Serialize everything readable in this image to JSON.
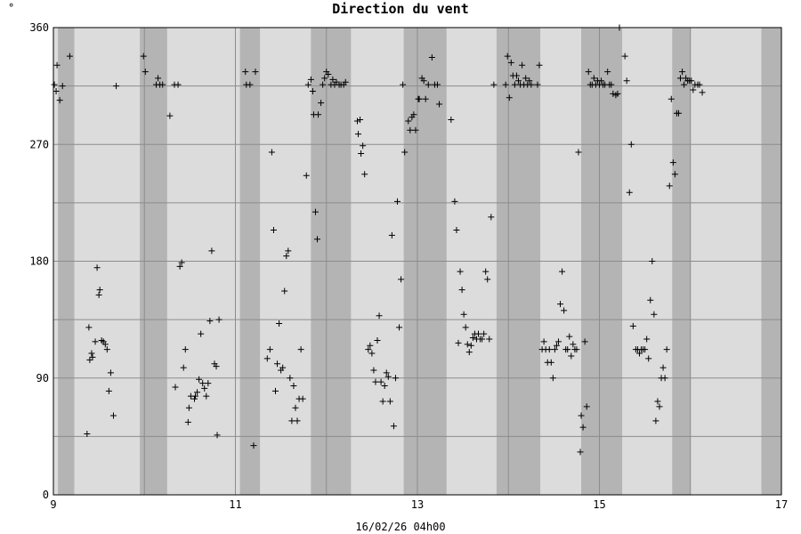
{
  "chart_data": {
    "type": "scatter",
    "title": "Direction du vent",
    "unit": "°",
    "xlabel": "16/02/26 04h00",
    "ylabel": "",
    "xlim": [
      9,
      17
    ],
    "ylim": [
      0,
      360
    ],
    "x_ticks": [
      9,
      11,
      13,
      15,
      17
    ],
    "y_ticks": [
      0,
      90,
      180,
      270,
      360
    ],
    "minor_gridlines_x": [
      10,
      12,
      14,
      16
    ],
    "minor_gridlines_y": [
      45,
      135,
      225,
      315
    ],
    "night_bands": [
      [
        9.05,
        9.23
      ],
      [
        9.95,
        10.25
      ],
      [
        11.05,
        11.27
      ],
      [
        11.83,
        12.27
      ],
      [
        12.85,
        13.32
      ],
      [
        13.87,
        14.35
      ],
      [
        14.8,
        15.25
      ],
      [
        15.8,
        16.0
      ],
      [
        16.78,
        17.0
      ]
    ],
    "background_color": "#dcdcdc",
    "night_color": "#b4b4b4",
    "points": [
      [
        9.01,
        316
      ],
      [
        9.03,
        311
      ],
      [
        9.04,
        331
      ],
      [
        9.07,
        304
      ],
      [
        9.1,
        315
      ],
      [
        9.18,
        338
      ],
      [
        9.37,
        47
      ],
      [
        9.39,
        129
      ],
      [
        9.4,
        104
      ],
      [
        9.42,
        109
      ],
      [
        9.43,
        106
      ],
      [
        9.46,
        118
      ],
      [
        9.48,
        175
      ],
      [
        9.5,
        154
      ],
      [
        9.51,
        158
      ],
      [
        9.53,
        119
      ],
      [
        9.55,
        118
      ],
      [
        9.57,
        116
      ],
      [
        9.59,
        112
      ],
      [
        9.61,
        80
      ],
      [
        9.63,
        94
      ],
      [
        9.66,
        61
      ],
      [
        9.69,
        315
      ],
      [
        9.99,
        338
      ],
      [
        10.01,
        326
      ],
      [
        10.13,
        316
      ],
      [
        10.15,
        321
      ],
      [
        10.17,
        316
      ],
      [
        10.2,
        316
      ],
      [
        10.28,
        292
      ],
      [
        10.33,
        316
      ],
      [
        10.34,
        83
      ],
      [
        10.37,
        316
      ],
      [
        10.39,
        176
      ],
      [
        10.41,
        179
      ],
      [
        10.43,
        98
      ],
      [
        10.45,
        112
      ],
      [
        10.48,
        56
      ],
      [
        10.49,
        67
      ],
      [
        10.51,
        76
      ],
      [
        10.55,
        74
      ],
      [
        10.56,
        76
      ],
      [
        10.58,
        79
      ],
      [
        10.6,
        89
      ],
      [
        10.62,
        124
      ],
      [
        10.64,
        86
      ],
      [
        10.66,
        82
      ],
      [
        10.68,
        76
      ],
      [
        10.7,
        86
      ],
      [
        10.72,
        134
      ],
      [
        10.74,
        188
      ],
      [
        10.77,
        101
      ],
      [
        10.79,
        99
      ],
      [
        10.8,
        46
      ],
      [
        10.82,
        135
      ],
      [
        11.11,
        326
      ],
      [
        11.12,
        316
      ],
      [
        11.16,
        316
      ],
      [
        11.2,
        38
      ],
      [
        11.22,
        326
      ],
      [
        11.35,
        105
      ],
      [
        11.38,
        112
      ],
      [
        11.4,
        264
      ],
      [
        11.42,
        204
      ],
      [
        11.44,
        80
      ],
      [
        11.46,
        101
      ],
      [
        11.48,
        132
      ],
      [
        11.5,
        96
      ],
      [
        11.52,
        98
      ],
      [
        11.54,
        157
      ],
      [
        11.56,
        184
      ],
      [
        11.58,
        188
      ],
      [
        11.6,
        90
      ],
      [
        11.62,
        57
      ],
      [
        11.64,
        84
      ],
      [
        11.66,
        67
      ],
      [
        11.68,
        57
      ],
      [
        11.7,
        74
      ],
      [
        11.72,
        112
      ],
      [
        11.74,
        74
      ],
      [
        11.78,
        246
      ],
      [
        11.8,
        316
      ],
      [
        11.83,
        320
      ],
      [
        11.85,
        311
      ],
      [
        11.86,
        293
      ],
      [
        11.88,
        218
      ],
      [
        11.9,
        197
      ],
      [
        11.91,
        293
      ],
      [
        11.94,
        302
      ],
      [
        11.96,
        316
      ],
      [
        11.98,
        321
      ],
      [
        12.0,
        326
      ],
      [
        12.02,
        324
      ],
      [
        12.05,
        316
      ],
      [
        12.07,
        320
      ],
      [
        12.09,
        316
      ],
      [
        12.11,
        318
      ],
      [
        12.14,
        316
      ],
      [
        12.16,
        316
      ],
      [
        12.19,
        316
      ],
      [
        12.21,
        318
      ],
      [
        12.34,
        288
      ],
      [
        12.35,
        278
      ],
      [
        12.37,
        289
      ],
      [
        12.38,
        263
      ],
      [
        12.4,
        269
      ],
      [
        12.42,
        247
      ],
      [
        12.46,
        112
      ],
      [
        12.48,
        115
      ],
      [
        12.5,
        109
      ],
      [
        12.52,
        96
      ],
      [
        12.54,
        87
      ],
      [
        12.56,
        119
      ],
      [
        12.58,
        138
      ],
      [
        12.6,
        87
      ],
      [
        12.62,
        72
      ],
      [
        12.64,
        84
      ],
      [
        12.66,
        94
      ],
      [
        12.68,
        91
      ],
      [
        12.7,
        72
      ],
      [
        12.72,
        200
      ],
      [
        12.74,
        53
      ],
      [
        12.76,
        90
      ],
      [
        12.78,
        226
      ],
      [
        12.8,
        129
      ],
      [
        12.82,
        166
      ],
      [
        12.84,
        316
      ],
      [
        12.86,
        264
      ],
      [
        12.9,
        288
      ],
      [
        12.92,
        281
      ],
      [
        12.94,
        291
      ],
      [
        12.96,
        293
      ],
      [
        12.98,
        281
      ],
      [
        13.01,
        305
      ],
      [
        13.02,
        305
      ],
      [
        13.05,
        321
      ],
      [
        13.07,
        319
      ],
      [
        13.09,
        305
      ],
      [
        13.12,
        316
      ],
      [
        13.16,
        337
      ],
      [
        13.19,
        316
      ],
      [
        13.22,
        316
      ],
      [
        13.24,
        301
      ],
      [
        13.37,
        289
      ],
      [
        13.41,
        226
      ],
      [
        13.43,
        204
      ],
      [
        13.45,
        117
      ],
      [
        13.47,
        172
      ],
      [
        13.49,
        158
      ],
      [
        13.51,
        139
      ],
      [
        13.53,
        129
      ],
      [
        13.55,
        116
      ],
      [
        13.57,
        110
      ],
      [
        13.59,
        115
      ],
      [
        13.61,
        121
      ],
      [
        13.63,
        124
      ],
      [
        13.65,
        120
      ],
      [
        13.67,
        124
      ],
      [
        13.69,
        120
      ],
      [
        13.71,
        120
      ],
      [
        13.73,
        124
      ],
      [
        13.75,
        172
      ],
      [
        13.77,
        166
      ],
      [
        13.79,
        120
      ],
      [
        13.81,
        214
      ],
      [
        13.84,
        316
      ],
      [
        13.97,
        316
      ],
      [
        13.99,
        338
      ],
      [
        14.01,
        306
      ],
      [
        14.03,
        333
      ],
      [
        14.05,
        323
      ],
      [
        14.07,
        316
      ],
      [
        14.09,
        323
      ],
      [
        14.11,
        319
      ],
      [
        14.13,
        316
      ],
      [
        14.15,
        331
      ],
      [
        14.17,
        316
      ],
      [
        14.19,
        321
      ],
      [
        14.21,
        316
      ],
      [
        14.23,
        319
      ],
      [
        14.25,
        316
      ],
      [
        14.32,
        316
      ],
      [
        14.34,
        331
      ],
      [
        14.37,
        112
      ],
      [
        14.39,
        118
      ],
      [
        14.41,
        112
      ],
      [
        14.43,
        102
      ],
      [
        14.45,
        112
      ],
      [
        14.47,
        102
      ],
      [
        14.49,
        90
      ],
      [
        14.51,
        112
      ],
      [
        14.53,
        115
      ],
      [
        14.55,
        118
      ],
      [
        14.57,
        147
      ],
      [
        14.59,
        172
      ],
      [
        14.61,
        142
      ],
      [
        14.63,
        112
      ],
      [
        14.65,
        112
      ],
      [
        14.67,
        122
      ],
      [
        14.69,
        107
      ],
      [
        14.71,
        116
      ],
      [
        14.73,
        112
      ],
      [
        14.75,
        112
      ],
      [
        14.77,
        264
      ],
      [
        14.79,
        33
      ],
      [
        14.8,
        61
      ],
      [
        14.82,
        52
      ],
      [
        14.84,
        118
      ],
      [
        14.86,
        68
      ],
      [
        14.88,
        326
      ],
      [
        14.9,
        316
      ],
      [
        14.92,
        316
      ],
      [
        14.94,
        321
      ],
      [
        14.96,
        316
      ],
      [
        14.98,
        319
      ],
      [
        15.0,
        316
      ],
      [
        15.02,
        319
      ],
      [
        15.04,
        316
      ],
      [
        15.06,
        316
      ],
      [
        15.09,
        326
      ],
      [
        15.11,
        316
      ],
      [
        15.13,
        316
      ],
      [
        15.15,
        309
      ],
      [
        15.18,
        308
      ],
      [
        15.2,
        309
      ],
      [
        15.22,
        360
      ],
      [
        15.28,
        338
      ],
      [
        15.3,
        319
      ],
      [
        15.33,
        233
      ],
      [
        15.35,
        270
      ],
      [
        15.37,
        130
      ],
      [
        15.4,
        112
      ],
      [
        15.42,
        112
      ],
      [
        15.44,
        109
      ],
      [
        15.46,
        112
      ],
      [
        15.48,
        112
      ],
      [
        15.5,
        112
      ],
      [
        15.52,
        120
      ],
      [
        15.54,
        105
      ],
      [
        15.56,
        150
      ],
      [
        15.58,
        180
      ],
      [
        15.6,
        139
      ],
      [
        15.62,
        57
      ],
      [
        15.64,
        72
      ],
      [
        15.66,
        68
      ],
      [
        15.68,
        90
      ],
      [
        15.7,
        98
      ],
      [
        15.72,
        90
      ],
      [
        15.74,
        112
      ],
      [
        15.77,
        238
      ],
      [
        15.79,
        305
      ],
      [
        15.81,
        256
      ],
      [
        15.83,
        247
      ],
      [
        15.85,
        294
      ],
      [
        15.87,
        294
      ],
      [
        15.89,
        321
      ],
      [
        15.91,
        326
      ],
      [
        15.93,
        316
      ],
      [
        15.95,
        321
      ],
      [
        15.97,
        319
      ],
      [
        15.99,
        319
      ],
      [
        16.01,
        319
      ],
      [
        16.03,
        312
      ],
      [
        16.05,
        316
      ],
      [
        16.08,
        316
      ],
      [
        16.1,
        316
      ],
      [
        16.13,
        310
      ]
    ]
  }
}
